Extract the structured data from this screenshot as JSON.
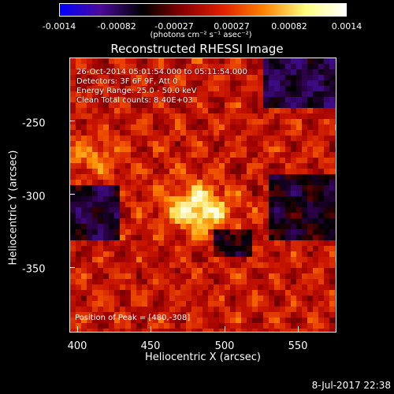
{
  "colorbar": {
    "ticks": [
      "-0.0014",
      "-0.00082",
      "-0.00027",
      "0.00027",
      "0.00082",
      "0.0014"
    ],
    "unit": "(photons cm⁻² s⁻¹ asec⁻²)",
    "colors": [
      "#0000ff",
      "#4b0a9a",
      "#000000",
      "#8a0000",
      "#e02000",
      "#ff8000",
      "#ffff80",
      "#ffffff"
    ]
  },
  "title": "Reconstructed RHESSI Image",
  "info": {
    "line1": "26-Oct-2014 05:01:54.000 to 05:11:54.000",
    "line2": "Detectors: 3F 6F 9F, Att 0",
    "line3": "Energy Range: 25.0 - 50.0 keV",
    "line4": "Clean    Total counts: 8.40E+03"
  },
  "peak_label": "Position of Peak = [480,-308]",
  "axes": {
    "xlabel": "Heliocentric X (arcsec)",
    "ylabel": "Heliocentric Y (arcsec)",
    "xticks": [
      "400",
      "450",
      "500",
      "550"
    ],
    "yticks": [
      "-250",
      "-300",
      "-350"
    ]
  },
  "timestamp": "8-Jul-2017 22:38"
}
